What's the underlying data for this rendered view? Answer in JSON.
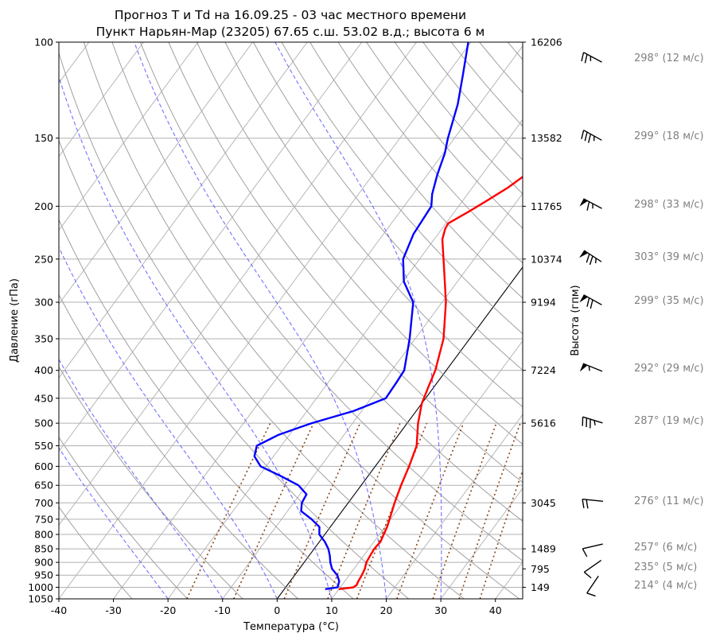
{
  "chart_data": {
    "type": "line",
    "skew_t": true,
    "title_line1": "Прогноз T и Td на 16.09.25 - 03 час местного времени",
    "title_line2": "Пункт Нарьян-Мар (23205) 67.65 с.ш. 53.02 в.д.; высота 6 м",
    "xlabel": "Температура (°C)",
    "ylabel": "Давление (гПа)",
    "ylabel_right": "Высота (гпм)",
    "xlim": [
      -40,
      45
    ],
    "ylim": [
      1050,
      100
    ],
    "y_scale": "log",
    "x_ticks": [
      "-40",
      "-30",
      "-20",
      "-10",
      "0",
      "10",
      "20",
      "30",
      "40"
    ],
    "y_ticks": [
      "100",
      "150",
      "200",
      "250",
      "300",
      "350",
      "400",
      "450",
      "500",
      "550",
      "600",
      "650",
      "700",
      "750",
      "800",
      "850",
      "900",
      "950",
      "1000",
      "1050"
    ],
    "height_ticks": [
      {
        "p": 100,
        "label": "16206"
      },
      {
        "p": 150,
        "label": "13582"
      },
      {
        "p": 200,
        "label": "11765"
      },
      {
        "p": 250,
        "label": "10374"
      },
      {
        "p": 300,
        "label": "9194"
      },
      {
        "p": 400,
        "label": "7224"
      },
      {
        "p": 500,
        "label": "5616"
      },
      {
        "p": 700,
        "label": "3045"
      },
      {
        "p": 850,
        "label": "1489"
      },
      {
        "p": 925,
        "label": "795"
      },
      {
        "p": 1000,
        "label": "149"
      }
    ],
    "grid": true,
    "series": [
      {
        "role": "temperature",
        "color": "#ff0000",
        "points": [
          [
            1008,
            10
          ],
          [
            1000,
            12.4
          ],
          [
            990,
            12.7
          ],
          [
            975,
            12.5
          ],
          [
            950,
            12.3
          ],
          [
            925,
            12
          ],
          [
            900,
            11.4
          ],
          [
            875,
            11.2
          ],
          [
            850,
            11
          ],
          [
            825,
            11.2
          ],
          [
            800,
            10.8
          ],
          [
            775,
            10.4
          ],
          [
            750,
            9.8
          ],
          [
            700,
            8.5
          ],
          [
            650,
            7.3
          ],
          [
            600,
            6.2
          ],
          [
            550,
            4.8
          ],
          [
            500,
            2
          ],
          [
            460,
            0
          ],
          [
            430,
            -1
          ],
          [
            400,
            -2
          ],
          [
            350,
            -4.8
          ],
          [
            300,
            -9.3
          ],
          [
            275,
            -12.3
          ],
          [
            250,
            -15.6
          ],
          [
            230,
            -18.5
          ],
          [
            220,
            -19.4
          ],
          [
            215,
            -19.6
          ],
          [
            205,
            -17.5
          ],
          [
            195,
            -15.5
          ],
          [
            185,
            -13.5
          ],
          [
            175,
            -12
          ],
          [
            160,
            -12.2
          ],
          [
            150,
            -13.5
          ],
          [
            130,
            -16.5
          ],
          [
            115,
            -19
          ],
          [
            100,
            -21.5
          ]
        ]
      },
      {
        "role": "dewpoint",
        "color": "#0000ff",
        "points": [
          [
            1008,
            7.5
          ],
          [
            1000,
            9.5
          ],
          [
            975,
            9
          ],
          [
            950,
            7.8
          ],
          [
            925,
            6
          ],
          [
            900,
            4.8
          ],
          [
            875,
            3.8
          ],
          [
            850,
            2.6
          ],
          [
            825,
            1
          ],
          [
            800,
            -1
          ],
          [
            775,
            -2
          ],
          [
            750,
            -4.5
          ],
          [
            725,
            -7.5
          ],
          [
            700,
            -8.5
          ],
          [
            675,
            -8.8
          ],
          [
            650,
            -11.5
          ],
          [
            625,
            -16
          ],
          [
            600,
            -21
          ],
          [
            575,
            -23.5
          ],
          [
            550,
            -24.5
          ],
          [
            525,
            -22
          ],
          [
            500,
            -17.5
          ],
          [
            475,
            -11.5
          ],
          [
            450,
            -7.3
          ],
          [
            420,
            -7.5
          ],
          [
            400,
            -7.7
          ],
          [
            350,
            -11
          ],
          [
            300,
            -15.3
          ],
          [
            275,
            -19.8
          ],
          [
            250,
            -23
          ],
          [
            225,
            -24.5
          ],
          [
            200,
            -25
          ],
          [
            190,
            -26.5
          ],
          [
            175,
            -28.2
          ],
          [
            160,
            -29.7
          ],
          [
            150,
            -31.2
          ],
          [
            130,
            -34
          ],
          [
            115,
            -37
          ],
          [
            100,
            -40.5
          ]
        ]
      }
    ],
    "wind": [
      {
        "p": 100,
        "dir": 298,
        "speed": 12,
        "label": "298° (12 м/с)"
      },
      {
        "p": 150,
        "dir": 299,
        "speed": 18,
        "label": "299° (18 м/с)"
      },
      {
        "p": 200,
        "dir": 298,
        "speed": 33,
        "label": "298° (33 м/с)"
      },
      {
        "p": 250,
        "dir": 303,
        "speed": 39,
        "label": "303° (39 м/с)"
      },
      {
        "p": 300,
        "dir": 299,
        "speed": 35,
        "label": "299° (35 м/с)"
      },
      {
        "p": 400,
        "dir": 292,
        "speed": 29,
        "label": "292° (29 м/с)"
      },
      {
        "p": 500,
        "dir": 287,
        "speed": 19,
        "label": "287° (19 м/с)"
      },
      {
        "p": 700,
        "dir": 276,
        "speed": 11,
        "label": "276° (11 м/с)"
      },
      {
        "p": 850,
        "dir": 257,
        "speed": 6,
        "label": "257° (6 м/с)"
      },
      {
        "p": 925,
        "dir": 235,
        "speed": 5,
        "label": "235° (5 м/с)"
      },
      {
        "p": 1000,
        "dir": 214,
        "speed": 4,
        "label": "214° (4 м/с)"
      }
    ],
    "colors": {
      "dry_adiabats": "#a0a0a0",
      "moist_adiabats": "#5a5aff",
      "mixing_ratio": "#8b4513",
      "isobars": "#b0b0b0",
      "isotherm_zero": "#000000",
      "wind_text": "#808080"
    }
  }
}
